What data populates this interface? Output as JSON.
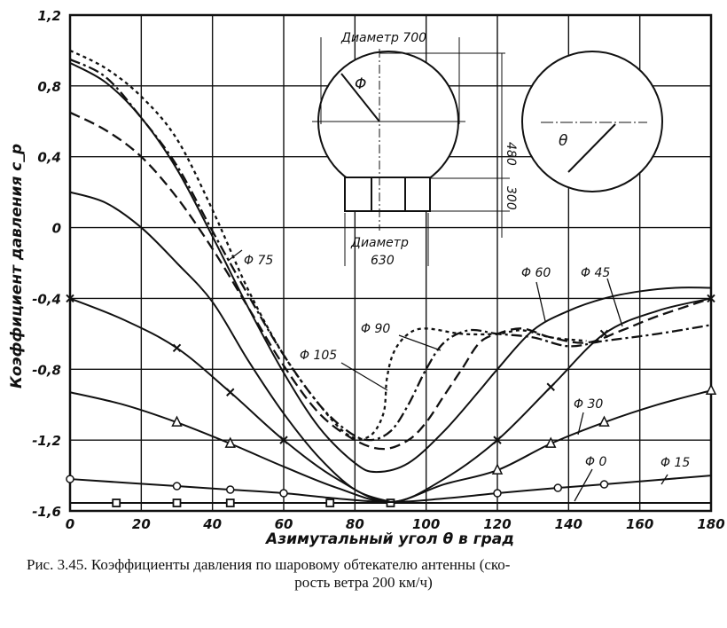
{
  "chart_data": {
    "type": "line",
    "title": "",
    "xlabel": "Азимутальный угол θ в град",
    "ylabel": "Коэффициент давления c_p",
    "xlim": [
      0,
      180
    ],
    "ylim": [
      -1.6,
      1.2
    ],
    "grid": true,
    "xticks": [
      0,
      20,
      40,
      60,
      80,
      100,
      120,
      140,
      160,
      180
    ],
    "xtick_labels": [
      "0",
      "20",
      "40",
      "60",
      "80",
      "100",
      "120",
      "140",
      "160",
      "180"
    ],
    "yticks": [
      1.2,
      0.8,
      0.4,
      0,
      -0.4,
      -0.8,
      -1.2,
      -1.6
    ],
    "ytick_labels": [
      "1,2",
      "0,8",
      "0,4",
      "0",
      "-0,4",
      "-0,8",
      "-1,2",
      "-1,6"
    ],
    "series": [
      {
        "name": "Φ 0",
        "style": "solid",
        "marker": "square",
        "points": [
          [
            0,
            -1.555
          ],
          [
            180,
            -1.555
          ]
        ],
        "marker_x": [
          13,
          30,
          45,
          73,
          90
        ]
      },
      {
        "name": "Φ 15",
        "style": "solid",
        "marker": "circle",
        "points": [
          [
            0,
            -1.42
          ],
          [
            30,
            -1.46
          ],
          [
            45,
            -1.48
          ],
          [
            60,
            -1.5
          ],
          [
            75,
            -1.53
          ],
          [
            90,
            -1.55
          ],
          [
            105,
            -1.53
          ],
          [
            120,
            -1.5
          ],
          [
            137,
            -1.47
          ],
          [
            150,
            -1.45
          ],
          [
            180,
            -1.4
          ]
        ],
        "marker_x": [
          0,
          30,
          45,
          60,
          120,
          137,
          150
        ]
      },
      {
        "name": "Φ 30",
        "style": "solid",
        "marker": "triangle",
        "points": [
          [
            0,
            -0.93
          ],
          [
            15,
            -1.0
          ],
          [
            30,
            -1.1
          ],
          [
            45,
            -1.22
          ],
          [
            60,
            -1.35
          ],
          [
            75,
            -1.47
          ],
          [
            90,
            -1.55
          ],
          [
            105,
            -1.45
          ],
          [
            120,
            -1.37
          ],
          [
            135,
            -1.22
          ],
          [
            150,
            -1.1
          ],
          [
            165,
            -1.0
          ],
          [
            180,
            -0.92
          ]
        ],
        "marker_x": [
          30,
          45,
          120,
          135,
          150,
          180
        ]
      },
      {
        "name": "Φ 45",
        "style": "solid",
        "marker": "x",
        "points": [
          [
            0,
            -0.4
          ],
          [
            15,
            -0.52
          ],
          [
            30,
            -0.68
          ],
          [
            45,
            -0.93
          ],
          [
            60,
            -1.2
          ],
          [
            75,
            -1.42
          ],
          [
            90,
            -1.55
          ],
          [
            105,
            -1.42
          ],
          [
            120,
            -1.2
          ],
          [
            135,
            -0.9
          ],
          [
            150,
            -0.6
          ],
          [
            165,
            -0.47
          ],
          [
            180,
            -0.4
          ]
        ],
        "marker_x": [
          0,
          30,
          45,
          60,
          120,
          135,
          150,
          180
        ]
      },
      {
        "name": "",
        "style": "solid",
        "marker": "none",
        "points": [
          [
            0,
            0.2
          ],
          [
            10,
            0.14
          ],
          [
            20,
            0
          ],
          [
            30,
            -0.2
          ],
          [
            40,
            -0.42
          ],
          [
            50,
            -0.75
          ],
          [
            60,
            -1.05
          ],
          [
            70,
            -1.3
          ],
          [
            80,
            -1.48
          ],
          [
            90,
            -1.55
          ]
        ],
        "marker_x": []
      },
      {
        "name": "Φ 60",
        "style": "solid",
        "marker": "none",
        "points": [
          [
            0,
            0.93
          ],
          [
            10,
            0.82
          ],
          [
            20,
            0.62
          ],
          [
            30,
            0.33
          ],
          [
            40,
            -0.05
          ],
          [
            50,
            -0.45
          ],
          [
            60,
            -0.82
          ],
          [
            70,
            -1.13
          ],
          [
            80,
            -1.33
          ],
          [
            86,
            -1.38
          ],
          [
            95,
            -1.33
          ],
          [
            105,
            -1.15
          ],
          [
            115,
            -0.92
          ],
          [
            120,
            -0.8
          ],
          [
            130,
            -0.58
          ],
          [
            140,
            -0.47
          ],
          [
            150,
            -0.4
          ],
          [
            160,
            -0.36
          ],
          [
            170,
            -0.34
          ],
          [
            180,
            -0.34
          ]
        ],
        "marker_x": []
      },
      {
        "name": "Φ 75",
        "style": "dashed",
        "marker": "none",
        "points": [
          [
            0,
            0.65
          ],
          [
            10,
            0.55
          ],
          [
            20,
            0.4
          ],
          [
            30,
            0.17
          ],
          [
            40,
            -0.12
          ],
          [
            50,
            -0.45
          ],
          [
            60,
            -0.78
          ],
          [
            70,
            -1.05
          ],
          [
            80,
            -1.2
          ],
          [
            88,
            -1.25
          ],
          [
            95,
            -1.2
          ],
          [
            100,
            -1.1
          ],
          [
            105,
            -0.95
          ],
          [
            110,
            -0.8
          ],
          [
            115,
            -0.65
          ],
          [
            120,
            -0.6
          ],
          [
            127,
            -0.57
          ],
          [
            135,
            -0.62
          ],
          [
            145,
            -0.65
          ],
          [
            155,
            -0.58
          ],
          [
            165,
            -0.5
          ],
          [
            180,
            -0.4
          ]
        ],
        "marker_x": []
      },
      {
        "name": "Φ 90",
        "style": "dashdot",
        "marker": "none",
        "points": [
          [
            0,
            0.95
          ],
          [
            10,
            0.85
          ],
          [
            20,
            0.62
          ],
          [
            30,
            0.35
          ],
          [
            40,
            -0.02
          ],
          [
            50,
            -0.38
          ],
          [
            60,
            -0.72
          ],
          [
            70,
            -1.0
          ],
          [
            78,
            -1.15
          ],
          [
            84,
            -1.2
          ],
          [
            90,
            -1.15
          ],
          [
            95,
            -1.0
          ],
          [
            100,
            -0.8
          ],
          [
            105,
            -0.65
          ],
          [
            112,
            -0.58
          ],
          [
            120,
            -0.6
          ],
          [
            130,
            -0.62
          ],
          [
            140,
            -0.67
          ],
          [
            150,
            -0.64
          ],
          [
            165,
            -0.6
          ],
          [
            180,
            -0.55
          ]
        ],
        "marker_x": []
      },
      {
        "name": "Φ 105",
        "style": "dotted",
        "marker": "none",
        "points": [
          [
            0,
            1.0
          ],
          [
            10,
            0.9
          ],
          [
            20,
            0.74
          ],
          [
            30,
            0.5
          ],
          [
            40,
            0.1
          ],
          [
            50,
            -0.35
          ],
          [
            60,
            -0.72
          ],
          [
            70,
            -1.0
          ],
          [
            78,
            -1.17
          ],
          [
            84,
            -1.18
          ],
          [
            88,
            -1.05
          ],
          [
            89,
            -0.85
          ],
          [
            91,
            -0.7
          ],
          [
            95,
            -0.6
          ],
          [
            100,
            -0.57
          ],
          [
            110,
            -0.6
          ],
          [
            120,
            -0.6
          ],
          [
            127,
            -0.58
          ],
          [
            135,
            -0.62
          ],
          [
            145,
            -0.64
          ]
        ],
        "marker_x": []
      }
    ],
    "inset": {
      "diameter_top": "Диаметр 700",
      "phi": "Φ",
      "height_sphere": "480",
      "height_base": "300",
      "diameter_bottom_1": "Диаметр",
      "diameter_bottom_2": "630",
      "theta": "θ"
    }
  },
  "caption": {
    "line1": "Рис. 3.45. Коэффициенты давления по шаровому обтекателю антенны (ско-",
    "line2": "рость ветра 200 км/ч)"
  }
}
